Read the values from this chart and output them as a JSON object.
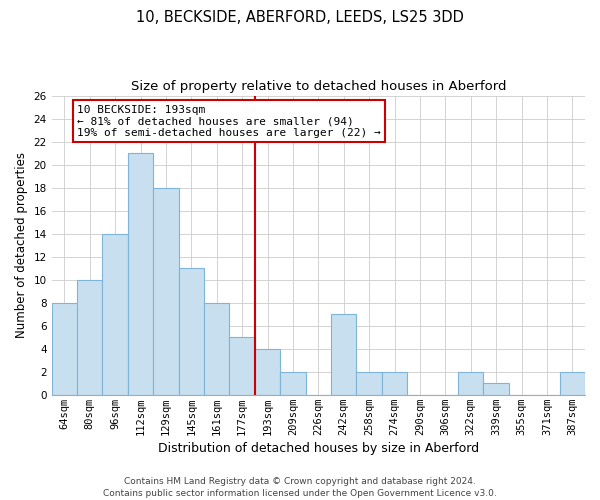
{
  "title": "10, BECKSIDE, ABERFORD, LEEDS, LS25 3DD",
  "subtitle": "Size of property relative to detached houses in Aberford",
  "xlabel": "Distribution of detached houses by size in Aberford",
  "ylabel": "Number of detached properties",
  "bar_labels": [
    "64sqm",
    "80sqm",
    "96sqm",
    "112sqm",
    "129sqm",
    "145sqm",
    "161sqm",
    "177sqm",
    "193sqm",
    "209sqm",
    "226sqm",
    "242sqm",
    "258sqm",
    "274sqm",
    "290sqm",
    "306sqm",
    "322sqm",
    "339sqm",
    "355sqm",
    "371sqm",
    "387sqm"
  ],
  "bar_values": [
    8,
    10,
    14,
    21,
    18,
    11,
    8,
    5,
    4,
    2,
    0,
    7,
    2,
    2,
    0,
    0,
    2,
    1,
    0,
    0,
    2
  ],
  "bar_color": "#c8dff0",
  "bar_edge_color": "#7db4d8",
  "vline_color": "#cc0000",
  "annotation_title": "10 BECKSIDE: 193sqm",
  "annotation_line1": "← 81% of detached houses are smaller (94)",
  "annotation_line2": "19% of semi-detached houses are larger (22) →",
  "annotation_box_color": "#ffffff",
  "annotation_box_edge": "#cc0000",
  "ylim": [
    0,
    26
  ],
  "yticks": [
    0,
    2,
    4,
    6,
    8,
    10,
    12,
    14,
    16,
    18,
    20,
    22,
    24,
    26
  ],
  "footer1": "Contains HM Land Registry data © Crown copyright and database right 2024.",
  "footer2": "Contains public sector information licensed under the Open Government Licence v3.0.",
  "title_fontsize": 10.5,
  "subtitle_fontsize": 9.5,
  "xlabel_fontsize": 9,
  "ylabel_fontsize": 8.5,
  "tick_fontsize": 7.5,
  "ann_fontsize": 8,
  "footer_fontsize": 6.5
}
